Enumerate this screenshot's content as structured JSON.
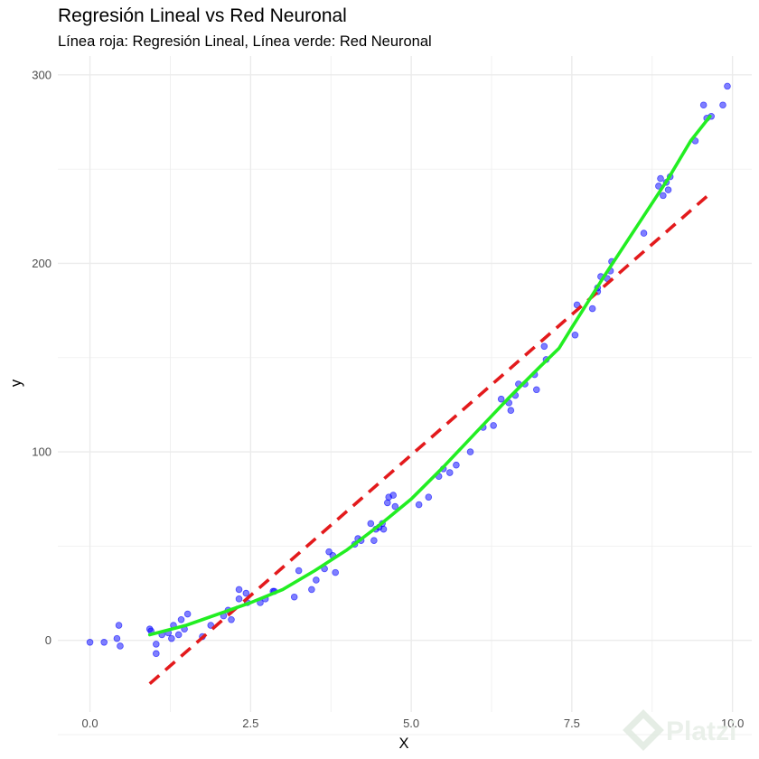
{
  "chart_data": {
    "type": "scatter",
    "title": "Regresión Lineal vs Red Neuronal",
    "subtitle": "Línea roja: Regresión Lineal, Línea verde: Red Neuronal",
    "xlabel": "X",
    "ylabel": "y",
    "xlim": [
      -0.5,
      10.3
    ],
    "ylim": [
      -38,
      310
    ],
    "x_ticks": [
      0.0,
      2.5,
      5.0,
      7.5,
      10.0
    ],
    "x_tick_labels": [
      "0.0",
      "2.5",
      "5.0",
      "7.5",
      "10.0"
    ],
    "y_ticks": [
      0,
      100,
      200,
      300
    ],
    "y_tick_labels": [
      "0",
      "100",
      "200",
      "300"
    ],
    "grid": true,
    "legend": "none",
    "colors": {
      "points": "#0000ff",
      "linear": "#e31a1c",
      "neural": "#22ee22",
      "grid": "#ebebeb"
    },
    "points": [
      [
        0.0,
        -1
      ],
      [
        0.22,
        -1
      ],
      [
        0.42,
        1
      ],
      [
        0.45,
        8
      ],
      [
        0.47,
        -3
      ],
      [
        0.93,
        6
      ],
      [
        0.95,
        5
      ],
      [
        1.03,
        -2
      ],
      [
        1.03,
        -7
      ],
      [
        1.12,
        3
      ],
      [
        1.22,
        4
      ],
      [
        1.27,
        1
      ],
      [
        1.3,
        8
      ],
      [
        1.38,
        3
      ],
      [
        1.42,
        11
      ],
      [
        1.47,
        6
      ],
      [
        1.52,
        14
      ],
      [
        1.75,
        2
      ],
      [
        1.88,
        8
      ],
      [
        2.08,
        13
      ],
      [
        2.15,
        16
      ],
      [
        2.2,
        11
      ],
      [
        2.32,
        27
      ],
      [
        2.32,
        22
      ],
      [
        2.43,
        25
      ],
      [
        2.45,
        20
      ],
      [
        2.65,
        20
      ],
      [
        2.73,
        22
      ],
      [
        2.85,
        26
      ],
      [
        2.87,
        26
      ],
      [
        3.18,
        23
      ],
      [
        3.25,
        37
      ],
      [
        3.45,
        27
      ],
      [
        3.52,
        32
      ],
      [
        3.65,
        38
      ],
      [
        3.72,
        47
      ],
      [
        3.78,
        45
      ],
      [
        3.82,
        36
      ],
      [
        4.12,
        51
      ],
      [
        4.17,
        54
      ],
      [
        4.22,
        53
      ],
      [
        4.37,
        62
      ],
      [
        4.42,
        53
      ],
      [
        4.45,
        59
      ],
      [
        4.5,
        60
      ],
      [
        4.55,
        62
      ],
      [
        4.57,
        59
      ],
      [
        4.63,
        73
      ],
      [
        4.65,
        76
      ],
      [
        4.72,
        77
      ],
      [
        4.75,
        71
      ],
      [
        5.12,
        72
      ],
      [
        5.27,
        76
      ],
      [
        5.43,
        87
      ],
      [
        5.5,
        91
      ],
      [
        5.6,
        89
      ],
      [
        5.7,
        93
      ],
      [
        5.92,
        100
      ],
      [
        6.12,
        113
      ],
      [
        6.28,
        114
      ],
      [
        6.4,
        128
      ],
      [
        6.52,
        126
      ],
      [
        6.55,
        122
      ],
      [
        6.62,
        130
      ],
      [
        6.67,
        136
      ],
      [
        6.77,
        136
      ],
      [
        6.92,
        141
      ],
      [
        6.95,
        133
      ],
      [
        7.07,
        156
      ],
      [
        7.1,
        149
      ],
      [
        7.55,
        162
      ],
      [
        7.58,
        178
      ],
      [
        7.82,
        176
      ],
      [
        7.9,
        185
      ],
      [
        7.9,
        187
      ],
      [
        7.95,
        193
      ],
      [
        8.05,
        192
      ],
      [
        8.1,
        196
      ],
      [
        8.12,
        201
      ],
      [
        8.62,
        216
      ],
      [
        8.85,
        241
      ],
      [
        8.88,
        245
      ],
      [
        8.92,
        236
      ],
      [
        8.97,
        243
      ],
      [
        9.0,
        239
      ],
      [
        9.03,
        246
      ],
      [
        9.42,
        265
      ],
      [
        9.55,
        284
      ],
      [
        9.6,
        277
      ],
      [
        9.67,
        278
      ],
      [
        9.85,
        284
      ],
      [
        9.92,
        294
      ]
    ],
    "linear_regression": {
      "x": [
        0.93,
        9.65
      ],
      "y": [
        -23,
        237
      ]
    },
    "neural_network": {
      "x": [
        0.93,
        1.5,
        2.0,
        2.5,
        3.0,
        3.5,
        4.0,
        4.5,
        5.0,
        5.5,
        6.0,
        6.5,
        7.0,
        7.3,
        7.5,
        8.0,
        8.5,
        9.0,
        9.35,
        9.65
      ],
      "y": [
        3,
        8,
        14,
        20,
        27,
        37,
        48,
        61,
        75,
        92,
        110,
        128,
        145,
        155,
        166,
        193,
        219,
        245,
        265,
        278
      ]
    }
  },
  "watermark": {
    "text": "Platzi",
    "icon": "platzi-logo-icon"
  }
}
